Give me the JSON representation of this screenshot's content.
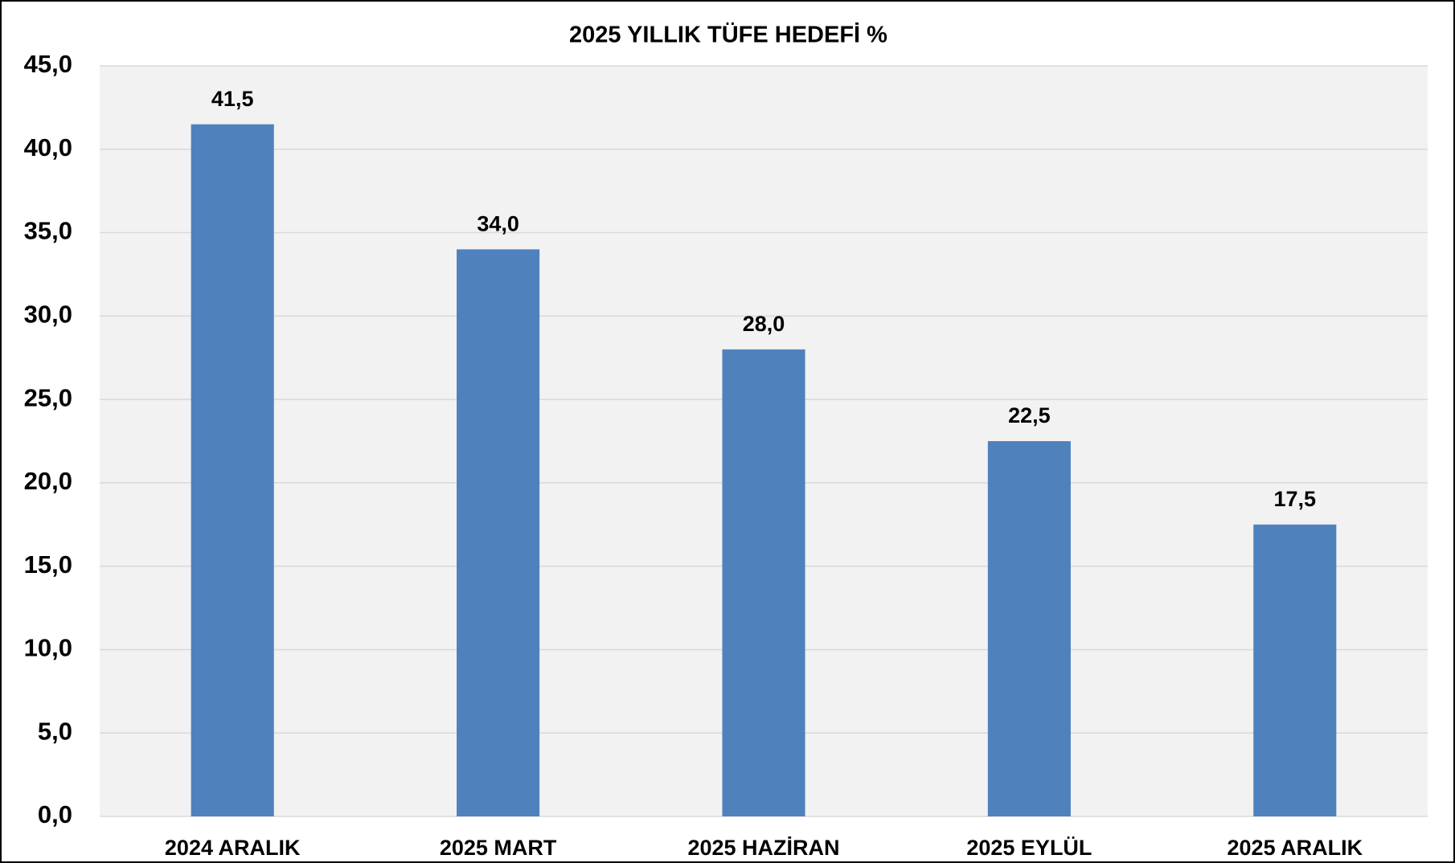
{
  "chart_data": {
    "type": "bar",
    "title": "2025 YILLIK TÜFE HEDEFİ %",
    "categories": [
      "2024 ARALIK",
      "2025 MART",
      "2025 HAZİRAN",
      "2025 EYLÜL",
      "2025 ARALIK"
    ],
    "values": [
      41.5,
      34.0,
      28.0,
      22.5,
      17.5
    ],
    "value_labels": [
      "41,5",
      "34,0",
      "28,0",
      "22,5",
      "17,5"
    ],
    "color": "#4f81bd",
    "ylim": [
      0,
      45
    ],
    "yticks": [
      {
        "value": 0,
        "label": "0,0"
      },
      {
        "value": 5,
        "label": "5,0"
      },
      {
        "value": 10,
        "label": "10,0"
      },
      {
        "value": 15,
        "label": "15,0"
      },
      {
        "value": 20,
        "label": "20,0"
      },
      {
        "value": 25,
        "label": "25,0"
      },
      {
        "value": 30,
        "label": "30,0"
      },
      {
        "value": 35,
        "label": "35,0"
      },
      {
        "value": 40,
        "label": "40,0"
      },
      {
        "value": 45,
        "label": "45,0"
      }
    ],
    "grid": true
  }
}
